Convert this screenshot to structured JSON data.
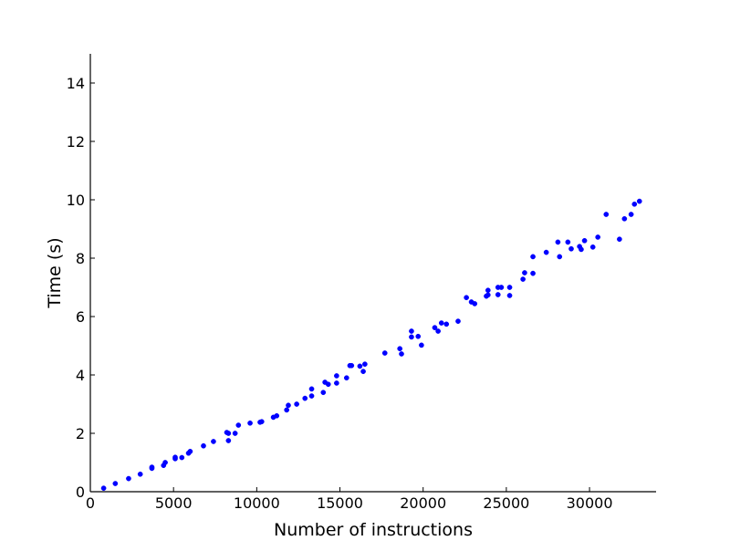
{
  "chart_data": {
    "type": "scatter",
    "title": "",
    "xlabel": "Number of instructions",
    "ylabel": "Time (s)",
    "xlim": [
      0,
      34000
    ],
    "ylim": [
      0,
      15
    ],
    "xticks": [
      0,
      5000,
      10000,
      15000,
      20000,
      25000,
      30000
    ],
    "yticks": [
      0,
      2,
      4,
      6,
      8,
      10,
      12,
      14
    ],
    "grid": false,
    "legend": "none",
    "colors": {
      "points": "#0000ff"
    },
    "series": [
      {
        "x": [
          800,
          1500,
          2300,
          3000,
          3700,
          3700,
          4400,
          4500,
          5100,
          5100,
          5500,
          5900,
          6000,
          6800,
          7400,
          8200,
          8300,
          8300,
          8700,
          8900,
          9600,
          10200,
          10300,
          11000,
          11200,
          11800,
          11900,
          12400,
          12900,
          13300,
          13300,
          14000,
          14100,
          14300,
          14800,
          14800,
          15400,
          15600,
          15700,
          16200,
          16400,
          16500,
          17700,
          18600,
          18700,
          19300,
          19300,
          19700,
          19900,
          20700,
          20900,
          21100,
          21400,
          22100,
          22600,
          22900,
          23100,
          23800,
          23900,
          23900,
          24500,
          24500,
          24700,
          25200,
          25200,
          26000,
          26100,
          26600,
          26600,
          27400,
          28100,
          28200,
          28700,
          28900,
          29400,
          29500,
          29700,
          30200,
          30500,
          31000,
          31800,
          32100,
          32500,
          32700,
          33000
        ],
        "y": [
          0.12,
          0.28,
          0.45,
          0.6,
          0.8,
          0.84,
          0.9,
          1.0,
          1.13,
          1.18,
          1.17,
          1.32,
          1.38,
          1.57,
          1.72,
          2.03,
          1.75,
          2.0,
          2.0,
          2.28,
          2.35,
          2.38,
          2.4,
          2.55,
          2.6,
          2.8,
          2.96,
          3.0,
          3.2,
          3.28,
          3.52,
          3.4,
          3.75,
          3.68,
          3.72,
          3.97,
          3.9,
          4.32,
          4.32,
          4.3,
          4.12,
          4.37,
          4.75,
          4.9,
          4.72,
          5.5,
          5.3,
          5.32,
          5.02,
          5.62,
          5.5,
          5.78,
          5.74,
          5.84,
          6.65,
          6.5,
          6.44,
          6.7,
          6.74,
          6.9,
          6.75,
          7.0,
          7.0,
          6.72,
          7.0,
          7.28,
          7.5,
          7.48,
          8.05,
          8.2,
          8.55,
          8.05,
          8.55,
          8.32,
          8.4,
          8.3,
          8.6,
          8.38,
          8.72,
          9.5,
          8.65,
          9.35,
          9.5,
          9.85,
          9.95
        ]
      }
    ]
  }
}
